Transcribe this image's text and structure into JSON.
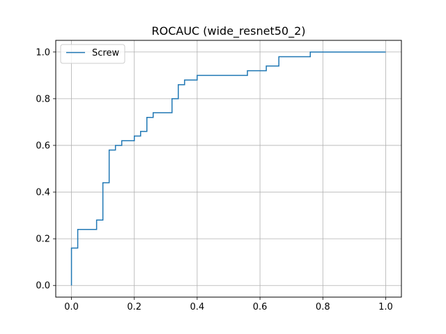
{
  "chart_data": {
    "type": "line",
    "step": true,
    "title": "ROCAUC (wide_resnet50_2)",
    "xlabel": "",
    "ylabel": "",
    "xlim": [
      -0.05,
      1.05
    ],
    "ylim": [
      -0.05,
      1.05
    ],
    "xticks": [
      0.0,
      0.2,
      0.4,
      0.6,
      0.8,
      1.0
    ],
    "xtick_labels": [
      "0.0",
      "0.2",
      "0.4",
      "0.6",
      "0.8",
      "1.0"
    ],
    "yticks": [
      0.0,
      0.2,
      0.4,
      0.6,
      0.8,
      1.0
    ],
    "ytick_labels": [
      "0.0",
      "0.2",
      "0.4",
      "0.6",
      "0.8",
      "1.0"
    ],
    "grid": true,
    "legend_position": "top-left",
    "series": [
      {
        "name": "Screw",
        "color": "#1f77b4",
        "x": [
          0.0,
          0.0,
          0.02,
          0.02,
          0.08,
          0.08,
          0.1,
          0.1,
          0.12,
          0.12,
          0.14,
          0.14,
          0.16,
          0.16,
          0.2,
          0.2,
          0.22,
          0.22,
          0.24,
          0.24,
          0.26,
          0.26,
          0.32,
          0.32,
          0.34,
          0.34,
          0.36,
          0.36,
          0.4,
          0.4,
          0.56,
          0.56,
          0.62,
          0.62,
          0.66,
          0.66,
          0.76,
          0.76,
          1.0
        ],
        "y": [
          0.0,
          0.16,
          0.16,
          0.24,
          0.24,
          0.28,
          0.28,
          0.44,
          0.44,
          0.58,
          0.58,
          0.6,
          0.6,
          0.62,
          0.62,
          0.64,
          0.64,
          0.66,
          0.66,
          0.72,
          0.72,
          0.74,
          0.74,
          0.8,
          0.8,
          0.86,
          0.86,
          0.88,
          0.88,
          0.9,
          0.9,
          0.92,
          0.92,
          0.94,
          0.94,
          0.98,
          0.98,
          1.0,
          1.0
        ]
      }
    ]
  }
}
